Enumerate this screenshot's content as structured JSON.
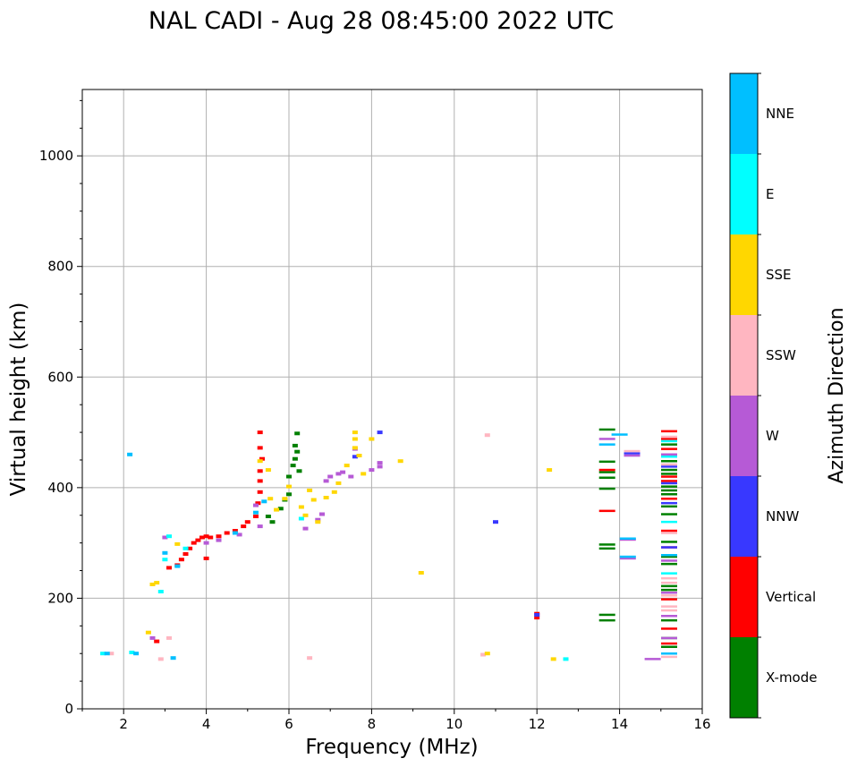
{
  "chart_data": {
    "type": "scatter",
    "title": "NAL CADI - Aug 28 08:45:00 2022 UTC",
    "xlabel": "Frequency (MHz)",
    "ylabel": "Virtual height (km)",
    "xlim": [
      1,
      16
    ],
    "ylim": [
      0,
      1120
    ],
    "xticks": [
      2,
      4,
      6,
      8,
      10,
      12,
      14,
      16
    ],
    "yticks": [
      0,
      200,
      400,
      600,
      800,
      1000
    ],
    "grid": true,
    "colorbar": {
      "label": "Azimuth Direction",
      "categories": [
        {
          "name": "X-mode",
          "color": "#008000"
        },
        {
          "name": "Vertical",
          "color": "#ff0000"
        },
        {
          "name": "NNW",
          "color": "#3838ff"
        },
        {
          "name": "W",
          "color": "#b65ad6"
        },
        {
          "name": "SSW",
          "color": "#ffb6c1"
        },
        {
          "name": "SSE",
          "color": "#ffd700"
        },
        {
          "name": "E",
          "color": "#00ffff"
        },
        {
          "name": "NNE",
          "color": "#00bfff"
        }
      ]
    },
    "series": [
      {
        "name": "X-mode",
        "points": [
          [
            5.6,
            338
          ],
          [
            5.8,
            362
          ],
          [
            5.9,
            378
          ],
          [
            6.0,
            388
          ],
          [
            6.0,
            420
          ],
          [
            6.15,
            452
          ],
          [
            6.15,
            476
          ],
          [
            6.2,
            498
          ],
          [
            6.2,
            465
          ],
          [
            6.25,
            430
          ],
          [
            5.5,
            348
          ],
          [
            6.1,
            440
          ],
          [
            13.7,
            505
          ],
          [
            13.7,
            447
          ],
          [
            13.7,
            428
          ],
          [
            13.7,
            418
          ],
          [
            13.7,
            398
          ],
          [
            13.7,
            297
          ],
          [
            13.7,
            290
          ],
          [
            13.7,
            170
          ],
          [
            13.7,
            160
          ],
          [
            15.2,
            478
          ],
          [
            15.2,
            448
          ],
          [
            15.2,
            432
          ],
          [
            15.2,
            425
          ],
          [
            15.2,
            402
          ],
          [
            15.2,
            395
          ],
          [
            15.2,
            388
          ],
          [
            15.2,
            366
          ],
          [
            15.2,
            352
          ],
          [
            15.2,
            302
          ],
          [
            15.2,
            275
          ],
          [
            15.2,
            262
          ],
          [
            15.2,
            222
          ],
          [
            15.2,
            215
          ],
          [
            15.2,
            160
          ],
          [
            15.2,
            128
          ],
          [
            15.2,
            112
          ]
        ]
      },
      {
        "name": "Vertical",
        "points": [
          [
            2.8,
            122
          ],
          [
            3.1,
            255
          ],
          [
            3.3,
            260
          ],
          [
            3.4,
            270
          ],
          [
            3.5,
            280
          ],
          [
            3.6,
            290
          ],
          [
            3.7,
            300
          ],
          [
            3.8,
            305
          ],
          [
            3.9,
            310
          ],
          [
            4.0,
            312
          ],
          [
            4.1,
            310
          ],
          [
            4.3,
            312
          ],
          [
            4.5,
            318
          ],
          [
            4.7,
            322
          ],
          [
            4.9,
            330
          ],
          [
            5.0,
            338
          ],
          [
            5.2,
            348
          ],
          [
            5.25,
            372
          ],
          [
            5.3,
            392
          ],
          [
            5.3,
            412
          ],
          [
            5.3,
            430
          ],
          [
            5.35,
            452
          ],
          [
            5.3,
            472
          ],
          [
            5.3,
            500
          ],
          [
            4.0,
            272
          ],
          [
            12.0,
            172
          ],
          [
            12.0,
            165
          ],
          [
            13.7,
            432
          ],
          [
            13.7,
            358
          ],
          [
            15.2,
            502
          ],
          [
            15.2,
            488
          ],
          [
            15.2,
            470
          ],
          [
            15.2,
            420
          ],
          [
            15.2,
            412
          ],
          [
            15.2,
            380
          ],
          [
            15.2,
            322
          ],
          [
            15.2,
            292
          ],
          [
            15.2,
            198
          ],
          [
            15.2,
            145
          ],
          [
            15.2,
            118
          ]
        ]
      },
      {
        "name": "NNW",
        "points": [
          [
            8.2,
            500
          ],
          [
            7.6,
            456
          ],
          [
            11.0,
            338
          ],
          [
            12.0,
            170
          ],
          [
            14.3,
            462
          ],
          [
            15.2,
            438
          ],
          [
            15.2,
            408
          ],
          [
            15.2,
            372
          ],
          [
            15.2,
            292
          ]
        ]
      },
      {
        "name": "W",
        "points": [
          [
            2.7,
            128
          ],
          [
            3.0,
            310
          ],
          [
            4.0,
            300
          ],
          [
            4.3,
            305
          ],
          [
            4.8,
            315
          ],
          [
            5.2,
            368
          ],
          [
            5.3,
            330
          ],
          [
            6.4,
            326
          ],
          [
            6.7,
            342
          ],
          [
            6.8,
            352
          ],
          [
            6.9,
            412
          ],
          [
            7.0,
            420
          ],
          [
            7.2,
            425
          ],
          [
            7.3,
            428
          ],
          [
            7.5,
            420
          ],
          [
            7.6,
            470
          ],
          [
            8.0,
            432
          ],
          [
            8.2,
            438
          ],
          [
            8.2,
            445
          ],
          [
            13.7,
            488
          ],
          [
            14.3,
            458
          ],
          [
            14.2,
            306
          ],
          [
            14.2,
            272
          ],
          [
            14.8,
            90
          ],
          [
            15.2,
            460
          ],
          [
            15.2,
            268
          ],
          [
            15.2,
            210
          ],
          [
            15.2,
            168
          ],
          [
            15.2,
            128
          ]
        ]
      },
      {
        "name": "SSW",
        "points": [
          [
            1.7,
            100
          ],
          [
            3.1,
            128
          ],
          [
            2.9,
            90
          ],
          [
            6.5,
            92
          ],
          [
            10.8,
            495
          ],
          [
            10.7,
            98
          ],
          [
            14.3,
            466
          ],
          [
            15.2,
            492
          ],
          [
            15.2,
            442
          ],
          [
            15.2,
            318
          ],
          [
            15.2,
            236
          ],
          [
            15.2,
            228
          ],
          [
            15.2,
            205
          ],
          [
            15.2,
            185
          ],
          [
            15.2,
            178
          ],
          [
            15.2,
            94
          ]
        ]
      },
      {
        "name": "SSE",
        "points": [
          [
            2.8,
            228
          ],
          [
            2.7,
            225
          ],
          [
            2.6,
            138
          ],
          [
            3.3,
            298
          ],
          [
            5.3,
            448
          ],
          [
            5.5,
            432
          ],
          [
            5.55,
            380
          ],
          [
            5.7,
            360
          ],
          [
            5.9,
            380
          ],
          [
            6.0,
            402
          ],
          [
            6.3,
            365
          ],
          [
            6.4,
            350
          ],
          [
            6.5,
            395
          ],
          [
            6.6,
            378
          ],
          [
            6.7,
            338
          ],
          [
            6.9,
            382
          ],
          [
            7.1,
            392
          ],
          [
            7.2,
            408
          ],
          [
            7.4,
            440
          ],
          [
            7.6,
            500
          ],
          [
            7.6,
            488
          ],
          [
            7.6,
            472
          ],
          [
            7.7,
            458
          ],
          [
            7.8,
            425
          ],
          [
            8.0,
            488
          ],
          [
            8.7,
            448
          ],
          [
            9.2,
            246
          ],
          [
            10.8,
            100
          ],
          [
            12.3,
            432
          ],
          [
            12.4,
            90
          ]
        ]
      },
      {
        "name": "E",
        "points": [
          [
            1.5,
            100
          ],
          [
            2.2,
            102
          ],
          [
            2.9,
            212
          ],
          [
            3.0,
            270
          ],
          [
            3.1,
            312
          ],
          [
            3.5,
            290
          ],
          [
            6.3,
            344
          ],
          [
            12.7,
            90
          ],
          [
            15.2,
            484
          ],
          [
            15.2,
            456
          ],
          [
            15.2,
            338
          ],
          [
            15.2,
            245
          ]
        ]
      },
      {
        "name": "NNE",
        "points": [
          [
            1.6,
            100
          ],
          [
            2.15,
            460
          ],
          [
            2.3,
            100
          ],
          [
            3.0,
            282
          ],
          [
            3.2,
            92
          ],
          [
            3.3,
            258
          ],
          [
            4.7,
            318
          ],
          [
            5.2,
            355
          ],
          [
            5.4,
            375
          ],
          [
            13.7,
            478
          ],
          [
            14.0,
            496
          ],
          [
            14.2,
            308
          ],
          [
            14.2,
            275
          ],
          [
            15.2,
            278
          ],
          [
            15.2,
            100
          ]
        ]
      }
    ]
  }
}
